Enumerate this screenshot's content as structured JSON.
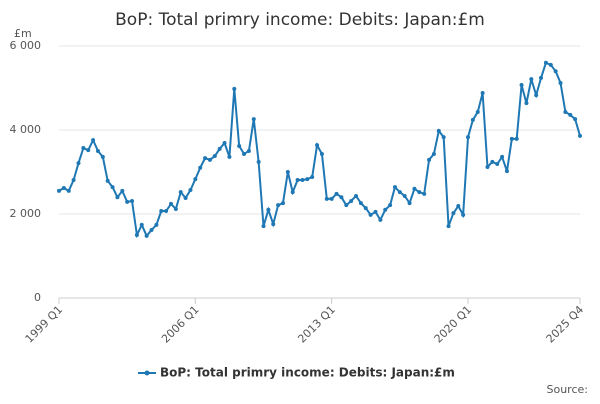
{
  "chart_data": {
    "type": "line",
    "title": "BoP: Total primry income: Debits: Japan:£m",
    "y_unit": "£m",
    "source": "Source:",
    "categories": [
      "1999 Q1",
      null,
      null,
      null,
      null,
      null,
      null,
      null,
      null,
      null,
      null,
      null,
      null,
      null,
      null,
      null,
      null,
      null,
      null,
      null,
      null,
      null,
      null,
      null,
      null,
      null,
      null,
      null,
      "2006 Q1",
      null,
      null,
      null,
      null,
      null,
      null,
      null,
      null,
      null,
      null,
      null,
      null,
      null,
      null,
      null,
      null,
      null,
      null,
      null,
      null,
      null,
      null,
      null,
      null,
      null,
      null,
      null,
      "2013 Q1",
      null,
      null,
      null,
      null,
      null,
      null,
      null,
      null,
      null,
      null,
      null,
      null,
      null,
      null,
      null,
      null,
      null,
      null,
      null,
      null,
      null,
      null,
      null,
      null,
      null,
      null,
      null,
      "2020 Q1",
      null,
      null,
      null,
      null,
      null,
      null,
      null,
      null,
      null,
      null,
      null,
      null,
      null,
      null,
      null,
      null,
      null,
      null,
      null,
      null,
      null,
      null,
      "2025 Q4"
    ],
    "series": [
      {
        "name": "BoP: Total primry income: Debits: Japan:£m",
        "color": "#1f78b4",
        "values": [
          2550,
          2620,
          2550,
          2810,
          3210,
          3570,
          3520,
          3760,
          3500,
          3360,
          2790,
          2640,
          2400,
          2550,
          2290,
          2310,
          1500,
          1740,
          1480,
          1620,
          1740,
          2070,
          2070,
          2240,
          2120,
          2520,
          2380,
          2570,
          2830,
          3100,
          3330,
          3290,
          3380,
          3550,
          3690,
          3360,
          4980,
          3620,
          3430,
          3500,
          4260,
          3240,
          1710,
          2100,
          1760,
          2210,
          2260,
          3000,
          2520,
          2810,
          2810,
          2830,
          2880,
          3640,
          3430,
          2360,
          2360,
          2480,
          2400,
          2210,
          2310,
          2430,
          2260,
          2140,
          1980,
          2050,
          1860,
          2100,
          2210,
          2640,
          2520,
          2430,
          2260,
          2600,
          2520,
          2480,
          3290,
          3430,
          3980,
          3830,
          1710,
          2020,
          2190,
          1980,
          3830,
          4240,
          4430,
          4880,
          3120,
          3240,
          3190,
          3360,
          3020,
          3790,
          3790,
          5070,
          4640,
          5210,
          4830,
          5240,
          5600,
          5550,
          5400,
          5120,
          4430,
          4360,
          4260,
          3860
        ]
      }
    ],
    "ylim": [
      0,
      6000
    ],
    "yticks": [
      0,
      {
        "value": 2000,
        "label": "2 000"
      },
      {
        "value": 4000,
        "label": "4 000"
      },
      {
        "value": 6000,
        "label": "6 000"
      }
    ],
    "grid": true,
    "legend": "bottom"
  }
}
